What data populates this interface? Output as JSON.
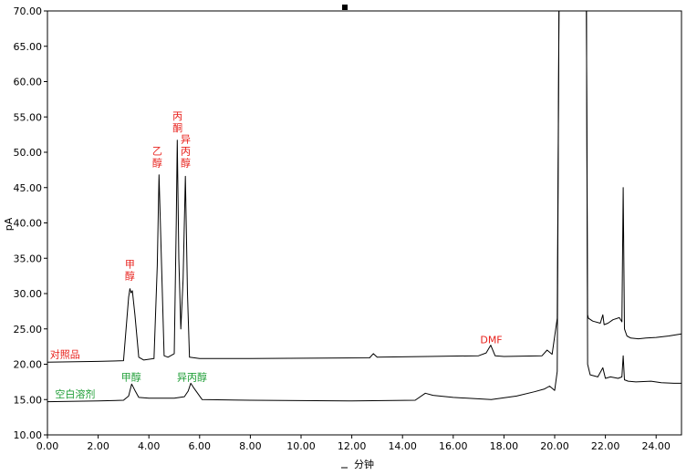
{
  "chart_data": {
    "type": "line",
    "title": "",
    "xlabel": "分钟",
    "ylabel": "pA",
    "xlim": [
      0,
      25
    ],
    "ylim": [
      10,
      70
    ],
    "x_ticks": [
      "0.00",
      "2.00",
      "4.00",
      "6.00",
      "8.00",
      "10.00",
      "12.00",
      "14.00",
      "16.00",
      "18.00",
      "20.00",
      "22.00",
      "24.00"
    ],
    "y_ticks": [
      "10.00",
      "15.00",
      "20.00",
      "25.00",
      "30.00",
      "35.00",
      "40.00",
      "45.00",
      "50.00",
      "55.00",
      "60.00",
      "65.00",
      "70.00"
    ],
    "colors": {
      "trace": "#000000",
      "reference_label": "#e8211c",
      "blank_label": "#1f9e37"
    },
    "series": [
      {
        "name": "对照品",
        "x": [
          0,
          2.0,
          3.0,
          3.2,
          3.25,
          3.3,
          3.35,
          3.45,
          3.6,
          3.8,
          4.2,
          4.33,
          4.4,
          4.5,
          4.6,
          4.75,
          5.0,
          5.08,
          5.12,
          5.18,
          5.26,
          5.35,
          5.44,
          5.52,
          5.6,
          6.0,
          8.0,
          12.7,
          12.85,
          13.0,
          15.0,
          17.0,
          17.3,
          17.48,
          17.65,
          18.0,
          19.5,
          19.7,
          19.9,
          20.1,
          20.17,
          20.2,
          21.25,
          21.3,
          21.33,
          21.5,
          21.8,
          21.9,
          21.95,
          22.1,
          22.3,
          22.55,
          22.65,
          22.7,
          22.75,
          22.85,
          23.0,
          23.3,
          23.6,
          24.0,
          24.5,
          25.0
        ],
        "y": [
          20.3,
          20.4,
          20.5,
          29.5,
          30.7,
          30.1,
          30.4,
          27.0,
          21.0,
          20.6,
          20.8,
          34.0,
          46.8,
          34.0,
          21.2,
          21.0,
          21.5,
          40.0,
          51.7,
          35.0,
          25.0,
          32.0,
          46.6,
          30.0,
          21.0,
          20.8,
          20.8,
          20.9,
          21.5,
          21.0,
          21.1,
          21.2,
          21.6,
          22.7,
          21.2,
          21.1,
          21.2,
          22.0,
          21.4,
          26.5,
          70.0,
          70.0,
          70.0,
          27.0,
          26.5,
          26.1,
          25.8,
          27.0,
          25.6,
          25.8,
          26.3,
          26.6,
          26.0,
          45.0,
          25.0,
          24.0,
          23.7,
          23.6,
          23.7,
          23.8,
          24.0,
          24.3
        ]
      },
      {
        "name": "空白溶剂",
        "x": [
          0,
          2.0,
          3.0,
          3.2,
          3.32,
          3.45,
          3.6,
          4.0,
          5.0,
          5.4,
          5.55,
          5.65,
          5.8,
          6.1,
          8.0,
          12.0,
          14.5,
          14.9,
          15.2,
          16.0,
          17.5,
          18.5,
          19.2,
          19.6,
          19.8,
          20.0,
          20.1,
          20.17,
          20.2,
          21.25,
          21.3,
          21.4,
          21.7,
          21.9,
          22.0,
          22.2,
          22.5,
          22.65,
          22.7,
          22.75,
          22.9,
          23.2,
          23.8,
          24.2,
          24.7,
          25.0
        ],
        "y": [
          14.7,
          14.8,
          14.9,
          15.5,
          17.2,
          16.3,
          15.3,
          15.2,
          15.2,
          15.4,
          16.2,
          17.3,
          16.5,
          15.0,
          14.9,
          14.8,
          14.9,
          15.9,
          15.6,
          15.3,
          15.0,
          15.5,
          16.1,
          16.5,
          16.9,
          16.3,
          19.0,
          70.0,
          70.0,
          70.0,
          20.0,
          18.5,
          18.2,
          19.5,
          18.0,
          18.2,
          18.0,
          18.2,
          21.2,
          17.8,
          17.6,
          17.5,
          17.6,
          17.4,
          17.3,
          17.3
        ]
      }
    ],
    "annotations": [
      {
        "text": "对照品",
        "x": 0.1,
        "y": 20.9,
        "series": "对照品"
      },
      {
        "text": "空白溶剂",
        "x": 0.3,
        "y": 15.3,
        "series": "空白溶剂"
      },
      {
        "text": "甲醇",
        "x": 3.25,
        "y": 32.0,
        "series": "对照品",
        "vertical": true
      },
      {
        "text": "乙醇",
        "x": 4.33,
        "y": 48.0,
        "series": "对照品",
        "vertical": true
      },
      {
        "text": "丙酮",
        "x": 5.13,
        "y": 53.0,
        "series": "对照品",
        "vertical": true
      },
      {
        "text": "异丙醇",
        "x": 5.45,
        "y": 48.0,
        "series": "对照品",
        "vertical": true
      },
      {
        "text": "DMF",
        "x": 17.5,
        "y": 23.0,
        "series": "对照品"
      },
      {
        "text": "甲醇",
        "x": 3.3,
        "y": 17.7,
        "series": "空白溶剂"
      },
      {
        "text": "异丙醇",
        "x": 5.7,
        "y": 17.7,
        "series": "空白溶剂"
      }
    ]
  }
}
